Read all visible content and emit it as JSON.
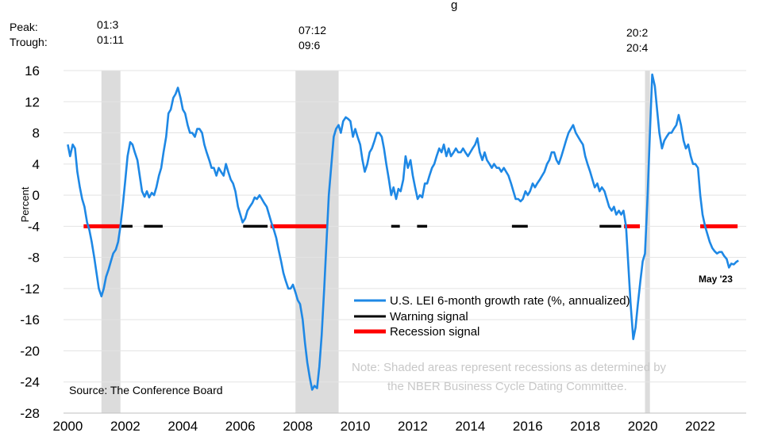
{
  "chart_data": {
    "type": "line",
    "title_fragment": "g",
    "ylabel": "Percent",
    "ylim": [
      -28,
      16
    ],
    "yticks": [
      "16",
      "12",
      "8",
      "4",
      "0",
      "-4",
      "-8",
      "-12",
      "-16",
      "-20",
      "-24",
      "-28"
    ],
    "xlim": [
      1999.85,
      2023.6
    ],
    "xticks": [
      "2000",
      "2002",
      "2004",
      "2006",
      "2008",
      "2010",
      "2012",
      "2014",
      "2016",
      "2018",
      "2020",
      "2022"
    ],
    "row_labels": {
      "peak": "Peak:",
      "trough": "Trough:"
    },
    "recessions": [
      {
        "peak": "01:3",
        "trough": "01:11",
        "start": 2001.17,
        "end": 2001.83
      },
      {
        "peak": "07:12",
        "trough": "09:6",
        "start": 2007.92,
        "end": 2009.42
      },
      {
        "peak": "20:2",
        "trough": "20:4",
        "start": 2020.08,
        "end": 2020.25
      }
    ],
    "series": [
      {
        "name": "U.S. LEI 6-month growth rate (%, annualized)",
        "color": "#1e88e5",
        "points": [
          [
            2000.0,
            6.5
          ],
          [
            2000.08,
            5.0
          ],
          [
            2000.17,
            6.5
          ],
          [
            2000.25,
            6.0
          ],
          [
            2000.33,
            3.0
          ],
          [
            2000.42,
            1.0
          ],
          [
            2000.5,
            -0.5
          ],
          [
            2000.58,
            -1.5
          ],
          [
            2000.67,
            -3.5
          ],
          [
            2000.75,
            -4.5
          ],
          [
            2000.83,
            -6.0
          ],
          [
            2000.92,
            -8.0
          ],
          [
            2001.0,
            -10.0
          ],
          [
            2001.08,
            -12.0
          ],
          [
            2001.17,
            -13.0
          ],
          [
            2001.25,
            -12.0
          ],
          [
            2001.33,
            -10.5
          ],
          [
            2001.42,
            -9.5
          ],
          [
            2001.5,
            -8.5
          ],
          [
            2001.58,
            -7.5
          ],
          [
            2001.67,
            -7.0
          ],
          [
            2001.75,
            -6.0
          ],
          [
            2001.83,
            -4.0
          ],
          [
            2001.92,
            -1.0
          ],
          [
            2002.0,
            2.0
          ],
          [
            2002.08,
            5.0
          ],
          [
            2002.17,
            6.8
          ],
          [
            2002.25,
            6.5
          ],
          [
            2002.33,
            5.5
          ],
          [
            2002.42,
            4.5
          ],
          [
            2002.5,
            2.5
          ],
          [
            2002.58,
            0.5
          ],
          [
            2002.67,
            -0.2
          ],
          [
            2002.75,
            0.5
          ],
          [
            2002.83,
            -0.3
          ],
          [
            2002.92,
            0.3
          ],
          [
            2003.0,
            0.0
          ],
          [
            2003.08,
            1.0
          ],
          [
            2003.17,
            2.5
          ],
          [
            2003.25,
            3.5
          ],
          [
            2003.33,
            5.5
          ],
          [
            2003.42,
            7.5
          ],
          [
            2003.5,
            10.5
          ],
          [
            2003.58,
            11.0
          ],
          [
            2003.67,
            12.5
          ],
          [
            2003.75,
            13.0
          ],
          [
            2003.83,
            13.8
          ],
          [
            2003.92,
            12.5
          ],
          [
            2004.0,
            11.0
          ],
          [
            2004.08,
            10.5
          ],
          [
            2004.17,
            9.0
          ],
          [
            2004.25,
            8.0
          ],
          [
            2004.33,
            8.0
          ],
          [
            2004.42,
            7.5
          ],
          [
            2004.5,
            8.5
          ],
          [
            2004.58,
            8.5
          ],
          [
            2004.67,
            8.0
          ],
          [
            2004.75,
            6.5
          ],
          [
            2004.83,
            5.5
          ],
          [
            2004.92,
            4.5
          ],
          [
            2005.0,
            3.5
          ],
          [
            2005.08,
            3.5
          ],
          [
            2005.17,
            2.5
          ],
          [
            2005.25,
            3.5
          ],
          [
            2005.33,
            3.0
          ],
          [
            2005.42,
            2.5
          ],
          [
            2005.5,
            4.0
          ],
          [
            2005.58,
            3.0
          ],
          [
            2005.67,
            2.0
          ],
          [
            2005.75,
            1.5
          ],
          [
            2005.83,
            0.5
          ],
          [
            2005.92,
            -1.5
          ],
          [
            2006.0,
            -2.5
          ],
          [
            2006.08,
            -3.5
          ],
          [
            2006.17,
            -3.0
          ],
          [
            2006.25,
            -2.0
          ],
          [
            2006.33,
            -1.5
          ],
          [
            2006.42,
            -1.0
          ],
          [
            2006.5,
            -0.3
          ],
          [
            2006.58,
            -0.5
          ],
          [
            2006.67,
            0.0
          ],
          [
            2006.75,
            -0.5
          ],
          [
            2006.83,
            -1.0
          ],
          [
            2006.92,
            -1.5
          ],
          [
            2007.0,
            -2.5
          ],
          [
            2007.08,
            -3.5
          ],
          [
            2007.17,
            -4.5
          ],
          [
            2007.25,
            -5.5
          ],
          [
            2007.33,
            -7.0
          ],
          [
            2007.42,
            -8.5
          ],
          [
            2007.5,
            -10.0
          ],
          [
            2007.58,
            -11.0
          ],
          [
            2007.67,
            -12.0
          ],
          [
            2007.75,
            -12.0
          ],
          [
            2007.83,
            -11.5
          ],
          [
            2007.92,
            -12.5
          ],
          [
            2008.0,
            -13.5
          ],
          [
            2008.08,
            -14.0
          ],
          [
            2008.17,
            -16.0
          ],
          [
            2008.25,
            -19.0
          ],
          [
            2008.33,
            -21.5
          ],
          [
            2008.42,
            -23.5
          ],
          [
            2008.5,
            -25.0
          ],
          [
            2008.58,
            -24.5
          ],
          [
            2008.67,
            -24.8
          ],
          [
            2008.75,
            -22.0
          ],
          [
            2008.83,
            -18.0
          ],
          [
            2008.92,
            -12.0
          ],
          [
            2009.0,
            -6.0
          ],
          [
            2009.08,
            0.0
          ],
          [
            2009.17,
            4.0
          ],
          [
            2009.25,
            7.5
          ],
          [
            2009.33,
            8.5
          ],
          [
            2009.42,
            9.0
          ],
          [
            2009.5,
            8.0
          ],
          [
            2009.58,
            9.5
          ],
          [
            2009.67,
            10.0
          ],
          [
            2009.75,
            9.8
          ],
          [
            2009.83,
            9.5
          ],
          [
            2009.92,
            7.5
          ],
          [
            2010.0,
            8.5
          ],
          [
            2010.08,
            7.5
          ],
          [
            2010.17,
            6.5
          ],
          [
            2010.25,
            4.5
          ],
          [
            2010.33,
            3.0
          ],
          [
            2010.42,
            4.0
          ],
          [
            2010.5,
            5.5
          ],
          [
            2010.58,
            6.0
          ],
          [
            2010.67,
            7.0
          ],
          [
            2010.75,
            8.0
          ],
          [
            2010.83,
            8.0
          ],
          [
            2010.92,
            7.5
          ],
          [
            2011.0,
            6.0
          ],
          [
            2011.08,
            4.0
          ],
          [
            2011.17,
            2.0
          ],
          [
            2011.25,
            0.0
          ],
          [
            2011.33,
            1.0
          ],
          [
            2011.42,
            -0.5
          ],
          [
            2011.5,
            0.8
          ],
          [
            2011.58,
            0.5
          ],
          [
            2011.67,
            2.0
          ],
          [
            2011.75,
            5.0
          ],
          [
            2011.83,
            3.5
          ],
          [
            2011.92,
            4.5
          ],
          [
            2012.0,
            2.5
          ],
          [
            2012.08,
            1.0
          ],
          [
            2012.17,
            -0.5
          ],
          [
            2012.25,
            0.0
          ],
          [
            2012.33,
            -0.3
          ],
          [
            2012.42,
            1.5
          ],
          [
            2012.5,
            1.5
          ],
          [
            2012.58,
            2.5
          ],
          [
            2012.67,
            3.5
          ],
          [
            2012.75,
            4.0
          ],
          [
            2012.83,
            5.0
          ],
          [
            2012.92,
            6.0
          ],
          [
            2013.0,
            5.5
          ],
          [
            2013.08,
            6.5
          ],
          [
            2013.17,
            5.0
          ],
          [
            2013.25,
            6.0
          ],
          [
            2013.33,
            5.0
          ],
          [
            2013.42,
            5.5
          ],
          [
            2013.5,
            6.0
          ],
          [
            2013.58,
            5.5
          ],
          [
            2013.67,
            5.5
          ],
          [
            2013.75,
            6.0
          ],
          [
            2013.83,
            5.5
          ],
          [
            2013.92,
            5.0
          ],
          [
            2014.0,
            5.5
          ],
          [
            2014.08,
            6.0
          ],
          [
            2014.17,
            6.5
          ],
          [
            2014.25,
            7.3
          ],
          [
            2014.33,
            5.5
          ],
          [
            2014.42,
            4.5
          ],
          [
            2014.5,
            5.5
          ],
          [
            2014.58,
            4.5
          ],
          [
            2014.67,
            4.0
          ],
          [
            2014.75,
            3.5
          ],
          [
            2014.83,
            4.0
          ],
          [
            2014.92,
            3.5
          ],
          [
            2015.0,
            3.5
          ],
          [
            2015.08,
            3.0
          ],
          [
            2015.17,
            3.5
          ],
          [
            2015.25,
            3.0
          ],
          [
            2015.33,
            2.5
          ],
          [
            2015.42,
            1.5
          ],
          [
            2015.5,
            0.5
          ],
          [
            2015.58,
            -0.5
          ],
          [
            2015.67,
            -0.5
          ],
          [
            2015.75,
            -0.8
          ],
          [
            2015.83,
            -0.5
          ],
          [
            2015.92,
            0.5
          ],
          [
            2016.0,
            0.0
          ],
          [
            2016.08,
            0.5
          ],
          [
            2016.17,
            1.5
          ],
          [
            2016.25,
            1.0
          ],
          [
            2016.33,
            1.5
          ],
          [
            2016.42,
            2.0
          ],
          [
            2016.5,
            2.5
          ],
          [
            2016.58,
            3.0
          ],
          [
            2016.67,
            4.0
          ],
          [
            2016.75,
            4.5
          ],
          [
            2016.83,
            5.5
          ],
          [
            2016.92,
            5.5
          ],
          [
            2017.0,
            4.5
          ],
          [
            2017.08,
            4.0
          ],
          [
            2017.17,
            5.0
          ],
          [
            2017.25,
            6.0
          ],
          [
            2017.33,
            7.0
          ],
          [
            2017.42,
            8.0
          ],
          [
            2017.5,
            8.5
          ],
          [
            2017.58,
            9.0
          ],
          [
            2017.67,
            8.0
          ],
          [
            2017.75,
            7.5
          ],
          [
            2017.83,
            7.0
          ],
          [
            2017.92,
            6.5
          ],
          [
            2018.0,
            5.0
          ],
          [
            2018.08,
            4.0
          ],
          [
            2018.17,
            3.0
          ],
          [
            2018.25,
            2.0
          ],
          [
            2018.33,
            1.0
          ],
          [
            2018.42,
            1.5
          ],
          [
            2018.5,
            0.5
          ],
          [
            2018.58,
            1.0
          ],
          [
            2018.67,
            0.5
          ],
          [
            2018.75,
            -0.5
          ],
          [
            2018.83,
            -1.5
          ],
          [
            2018.92,
            -2.0
          ],
          [
            2019.0,
            -1.5
          ],
          [
            2019.08,
            -2.5
          ],
          [
            2019.17,
            -2.0
          ],
          [
            2019.25,
            -2.5
          ],
          [
            2019.33,
            -2.0
          ],
          [
            2019.42,
            -4.0
          ],
          [
            2019.5,
            -9.0
          ],
          [
            2019.58,
            -14.0
          ],
          [
            2019.67,
            -18.5
          ],
          [
            2019.75,
            -17.0
          ],
          [
            2019.83,
            -14.0
          ],
          [
            2019.92,
            -11.0
          ],
          [
            2020.0,
            -8.5
          ],
          [
            2020.08,
            -7.5
          ],
          [
            2020.17,
            0.0
          ],
          [
            2020.25,
            8.0
          ],
          [
            2020.33,
            15.5
          ],
          [
            2020.42,
            14.0
          ],
          [
            2020.5,
            11.0
          ],
          [
            2020.58,
            8.0
          ],
          [
            2020.67,
            6.0
          ],
          [
            2020.75,
            7.0
          ],
          [
            2020.83,
            7.5
          ],
          [
            2020.92,
            8.0
          ],
          [
            2021.0,
            8.0
          ],
          [
            2021.08,
            8.5
          ],
          [
            2021.17,
            9.0
          ],
          [
            2021.25,
            10.3
          ],
          [
            2021.33,
            9.0
          ],
          [
            2021.42,
            7.0
          ],
          [
            2021.5,
            6.0
          ],
          [
            2021.58,
            6.5
          ],
          [
            2021.67,
            5.0
          ],
          [
            2021.75,
            4.0
          ],
          [
            2021.83,
            4.0
          ],
          [
            2021.92,
            3.5
          ],
          [
            2022.0,
            0.0
          ],
          [
            2022.08,
            -2.5
          ],
          [
            2022.17,
            -4.0
          ],
          [
            2022.25,
            -5.0
          ],
          [
            2022.33,
            -6.0
          ],
          [
            2022.42,
            -6.8
          ],
          [
            2022.5,
            -7.2
          ],
          [
            2022.58,
            -7.5
          ],
          [
            2022.67,
            -7.3
          ],
          [
            2022.75,
            -7.3
          ],
          [
            2022.83,
            -7.8
          ],
          [
            2022.92,
            -8.2
          ],
          [
            2023.0,
            -9.3
          ],
          [
            2023.08,
            -8.8
          ],
          [
            2023.17,
            -8.9
          ],
          [
            2023.25,
            -8.6
          ],
          [
            2023.33,
            -8.4
          ]
        ]
      },
      {
        "name": "Warning signal",
        "color": "#000000",
        "value": -4,
        "segments": [
          [
            2001.85,
            2002.25
          ],
          [
            2002.65,
            2003.3
          ],
          [
            2006.1,
            2006.95
          ],
          [
            2011.25,
            2011.55
          ],
          [
            2012.15,
            2012.5
          ],
          [
            2015.45,
            2016.0
          ],
          [
            2018.5,
            2019.25
          ]
        ]
      },
      {
        "name": "Recession signal",
        "color": "#ff0000",
        "value": -4,
        "segments": [
          [
            2000.55,
            2001.85
          ],
          [
            2007.05,
            2009.05
          ],
          [
            2019.35,
            2019.9
          ],
          [
            2022.0,
            2023.3
          ]
        ]
      }
    ],
    "end_label": "May '23",
    "note": [
      "Note: Shaded areas represent recessions as determined by",
      "the NBER Business Cycle Dating Committee."
    ],
    "source": "Source: The Conference Board"
  }
}
